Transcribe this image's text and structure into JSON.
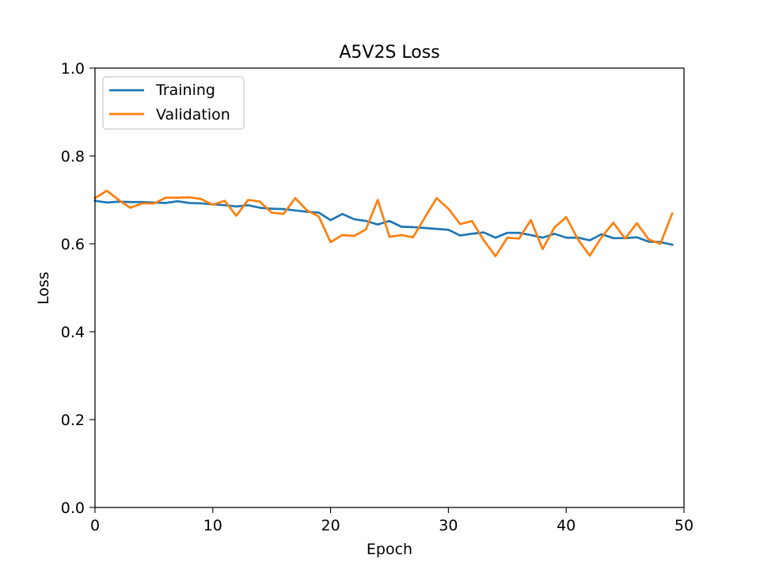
{
  "chart_data": {
    "type": "line",
    "title": "A5V2S Loss",
    "xlabel": "Epoch",
    "ylabel": "Loss",
    "xlim": [
      0,
      50
    ],
    "ylim": [
      0,
      1
    ],
    "xticks": [
      "0",
      "10",
      "20",
      "30",
      "40",
      "50"
    ],
    "yticks": [
      "0.0",
      "0.2",
      "0.4",
      "0.6",
      "0.8",
      "1.0"
    ],
    "grid": false,
    "legend_position": "top-left",
    "x": [
      0,
      1,
      2,
      3,
      4,
      5,
      6,
      7,
      8,
      9,
      10,
      11,
      12,
      13,
      14,
      15,
      16,
      17,
      18,
      19,
      20,
      21,
      22,
      23,
      24,
      25,
      26,
      27,
      28,
      29,
      30,
      31,
      32,
      33,
      34,
      35,
      36,
      37,
      38,
      39,
      40,
      41,
      42,
      43,
      44,
      45,
      46,
      47,
      48,
      49
    ],
    "series": [
      {
        "name": "Training",
        "color": "#1f77b4",
        "values": [
          0.698,
          0.694,
          0.696,
          0.695,
          0.695,
          0.694,
          0.693,
          0.697,
          0.693,
          0.692,
          0.69,
          0.688,
          0.685,
          0.688,
          0.682,
          0.68,
          0.679,
          0.676,
          0.673,
          0.671,
          0.654,
          0.668,
          0.656,
          0.652,
          0.644,
          0.652,
          0.639,
          0.638,
          0.636,
          0.634,
          0.632,
          0.619,
          0.623,
          0.626,
          0.614,
          0.625,
          0.625,
          0.62,
          0.614,
          0.623,
          0.614,
          0.614,
          0.608,
          0.622,
          0.613,
          0.613,
          0.615,
          0.605,
          0.604,
          0.598
        ]
      },
      {
        "name": "Validation",
        "color": "#ff7f0e",
        "values": [
          0.704,
          0.721,
          0.7,
          0.682,
          0.692,
          0.692,
          0.705,
          0.705,
          0.706,
          0.702,
          0.689,
          0.698,
          0.664,
          0.7,
          0.696,
          0.671,
          0.668,
          0.704,
          0.676,
          0.662,
          0.604,
          0.62,
          0.618,
          0.633,
          0.7,
          0.616,
          0.62,
          0.615,
          0.66,
          0.704,
          0.68,
          0.645,
          0.652,
          0.608,
          0.572,
          0.614,
          0.612,
          0.654,
          0.588,
          0.637,
          0.661,
          0.61,
          0.573,
          0.615,
          0.648,
          0.612,
          0.647,
          0.61,
          0.6,
          0.669
        ]
      }
    ]
  }
}
